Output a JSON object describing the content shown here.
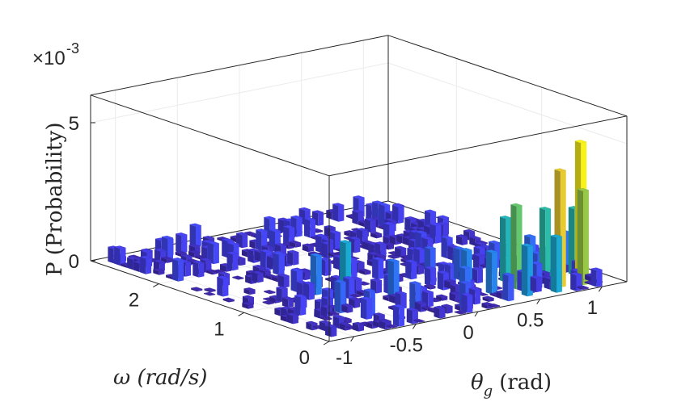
{
  "chart_data": {
    "type": "bar3d",
    "title": "",
    "exponent_label": "×10",
    "exponent_power": "-3",
    "zlabel": "P (Probability)",
    "ylabel": "ω (rad/s)",
    "xlabel_symbol": "θ",
    "xlabel_subscript": "g",
    "xlabel_unit": "(rad)",
    "x_ticks": [
      "-1",
      "-0.5",
      "0",
      "0.5",
      "1"
    ],
    "x_tick_values": [
      -1,
      -0.5,
      0,
      0.5,
      1
    ],
    "y_ticks": [
      "0",
      "1",
      "2"
    ],
    "y_tick_values": [
      0,
      1,
      2
    ],
    "z_ticks": [
      "0",
      "5"
    ],
    "z_tick_values": [
      0,
      5
    ],
    "xlim": [
      -1.2,
      1.2
    ],
    "ylim": [
      0,
      2.8
    ],
    "zlim": [
      0,
      6
    ],
    "colormap": [
      "#3e26a8",
      "#4743f7",
      "#2e76f7",
      "#1aa8d8",
      "#2dc0a0",
      "#84cc4d",
      "#d9ba35",
      "#fadd2c",
      "#f9fb0e"
    ],
    "highlight_bars": [
      {
        "theta": 1.0,
        "omega": 0.25,
        "p": 5.0
      },
      {
        "theta": 0.8,
        "omega": 0.2,
        "p": 4.2
      },
      {
        "theta": 0.95,
        "omega": 0.15,
        "p": 3.4
      },
      {
        "theta": 0.55,
        "omega": 0.35,
        "p": 3.0
      },
      {
        "theta": 0.85,
        "omega": 0.45,
        "p": 2.5
      },
      {
        "theta": 0.6,
        "omega": 0.55,
        "p": 2.3
      },
      {
        "theta": 1.05,
        "omega": 0.4,
        "p": 2.4
      },
      {
        "theta": 0.7,
        "omega": 0.1,
        "p": 2.0
      },
      {
        "theta": 0.5,
        "omega": 0.15,
        "p": 1.8
      },
      {
        "theta": 0.35,
        "omega": 0.35,
        "p": 1.5
      },
      {
        "theta": 0.25,
        "omega": 0.5,
        "p": 1.5
      },
      {
        "theta": -0.45,
        "omega": 0.9,
        "p": 2.0
      },
      {
        "theta": -0.55,
        "omega": 1.1,
        "p": 1.4
      },
      {
        "theta": -0.2,
        "omega": 0.7,
        "p": 1.3
      },
      {
        "theta": 0.1,
        "omega": 0.3,
        "p": 1.2
      },
      {
        "theta": 1.1,
        "omega": 0.6,
        "p": 1.3
      },
      {
        "theta": 0.9,
        "omega": 0.7,
        "p": 1.2
      },
      {
        "theta": 0.4,
        "omega": 0.8,
        "p": 1.1
      },
      {
        "theta": 0.3,
        "omega": 1.0,
        "p": 1.0
      },
      {
        "theta": -0.7,
        "omega": 0.6,
        "p": 1.1
      },
      {
        "theta": -0.3,
        "omega": 0.3,
        "p": 1.0
      },
      {
        "theta": 0.0,
        "omega": 0.15,
        "p": 0.9
      },
      {
        "theta": 0.75,
        "omega": 0.9,
        "p": 0.9
      },
      {
        "theta": -0.6,
        "omega": 0.4,
        "p": 0.9
      }
    ],
    "background_bar_count": 520,
    "background_p_range": [
      0.02,
      0.75
    ],
    "random_seed": 7
  }
}
